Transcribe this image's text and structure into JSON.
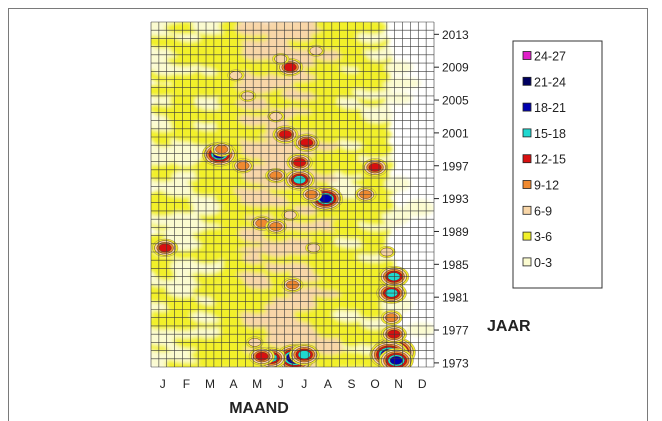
{
  "chart_data": {
    "type": "heatmap",
    "xlabel": "MAAND",
    "ylabel": "JAAR",
    "month_ticks": [
      "J",
      "F",
      "M",
      "A",
      "M",
      "J",
      "J",
      "A",
      "S",
      "O",
      "N",
      "D"
    ],
    "year_ticks": [
      "1973",
      "1977",
      "1981",
      "1985",
      "1989",
      "1993",
      "1997",
      "2001",
      "2005",
      "2009",
      "2013"
    ],
    "year_range": [
      1972,
      2014
    ],
    "legend": [
      {
        "label": "24-27",
        "color": "#e020c8"
      },
      {
        "label": "21-24",
        "color": "#000060"
      },
      {
        "label": "18-21",
        "color": "#0000b0"
      },
      {
        "label": "15-18",
        "color": "#20d8d0"
      },
      {
        "label": "12-15",
        "color": "#d81010"
      },
      {
        "label": "9-12",
        "color": "#f08a30"
      },
      {
        "label": "6-9",
        "color": "#f8d6a8"
      },
      {
        "label": "3-6",
        "color": "#f2f02a"
      },
      {
        "label": "0-3",
        "color": "#fbfbd0"
      }
    ],
    "hotspots": [
      {
        "month": 9.8,
        "year": 1974.3,
        "value": 25
      },
      {
        "month": 9.6,
        "year": 1974.0,
        "value": 22
      },
      {
        "month": 9.9,
        "year": 1973.3,
        "value": 19
      },
      {
        "month": 9.8,
        "year": 1976.5,
        "value": 14
      },
      {
        "month": 9.7,
        "year": 1981.5,
        "value": 16
      },
      {
        "month": 9.8,
        "year": 1983.5,
        "value": 17
      },
      {
        "month": 9.7,
        "year": 1978.5,
        "value": 11
      },
      {
        "month": 9.5,
        "year": 1986.5,
        "value": 8
      },
      {
        "month": 5.6,
        "year": 1973.6,
        "value": 22
      },
      {
        "month": 6.0,
        "year": 1974.0,
        "value": 17
      },
      {
        "month": 4.6,
        "year": 1973.6,
        "value": 16
      },
      {
        "month": 4.2,
        "year": 1973.8,
        "value": 14
      },
      {
        "month": 3.9,
        "year": 1975.5,
        "value": 7
      },
      {
        "month": 2.4,
        "year": 1998.4,
        "value": 19
      },
      {
        "month": 2.5,
        "year": 1999.0,
        "value": 11
      },
      {
        "month": 5.8,
        "year": 1995.3,
        "value": 16
      },
      {
        "month": 5.8,
        "year": 1997.4,
        "value": 14
      },
      {
        "month": 6.1,
        "year": 1999.8,
        "value": 12
      },
      {
        "month": 6.9,
        "year": 1993.0,
        "value": 18
      },
      {
        "month": 6.3,
        "year": 1993.5,
        "value": 10
      },
      {
        "month": 5.2,
        "year": 2000.8,
        "value": 13
      },
      {
        "month": 4.8,
        "year": 1995.8,
        "value": 10
      },
      {
        "month": 5.4,
        "year": 1991.0,
        "value": 8
      },
      {
        "month": 4.2,
        "year": 1990.0,
        "value": 10
      },
      {
        "month": 4.8,
        "year": 1989.6,
        "value": 9
      },
      {
        "month": 5.4,
        "year": 2009.0,
        "value": 13
      },
      {
        "month": 5.0,
        "year": 2010.0,
        "value": 7
      },
      {
        "month": 9.0,
        "year": 1996.8,
        "value": 12
      },
      {
        "month": 8.6,
        "year": 1993.5,
        "value": 10
      },
      {
        "month": 0.1,
        "year": 1987.0,
        "value": 14
      },
      {
        "month": 3.4,
        "year": 1997.0,
        "value": 9
      },
      {
        "month": 3.6,
        "year": 2005.5,
        "value": 8
      },
      {
        "month": 4.8,
        "year": 2003.0,
        "value": 8
      },
      {
        "month": 5.5,
        "year": 1982.5,
        "value": 9
      },
      {
        "month": 6.4,
        "year": 1987.0,
        "value": 7
      },
      {
        "month": 3.1,
        "year": 2008.0,
        "value": 7
      },
      {
        "month": 6.5,
        "year": 2011.0,
        "value": 6
      }
    ],
    "grid": true,
    "legend_position": "right"
  }
}
